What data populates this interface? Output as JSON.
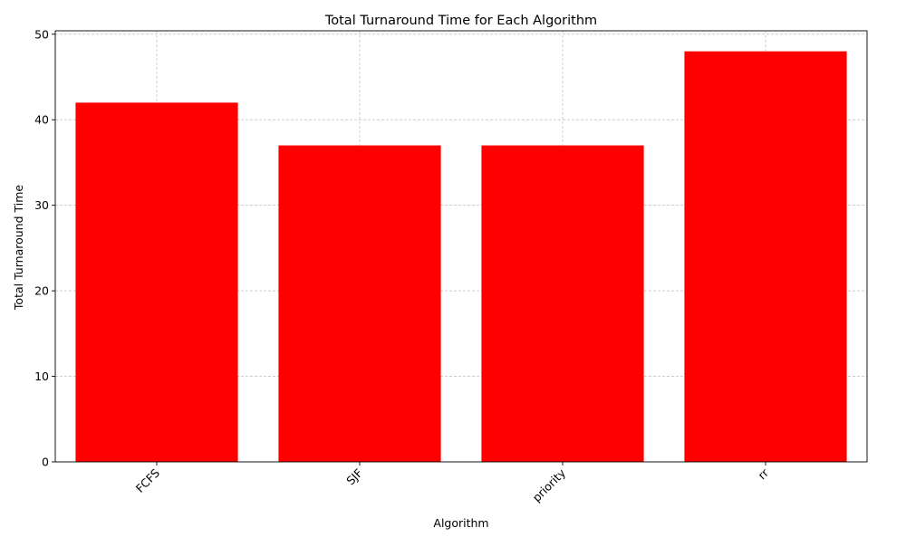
{
  "chart_data": {
    "type": "bar",
    "title": "Total Turnaround Time for Each Algorithm",
    "xlabel": "Algorithm",
    "ylabel": "Total Turnaround Time",
    "categories": [
      "FCFS",
      "SJF",
      "priority",
      "rr"
    ],
    "values": [
      42,
      37,
      37,
      48
    ],
    "ylim": [
      0,
      50.4
    ],
    "yticks": [
      0,
      10,
      20,
      30,
      40,
      50
    ],
    "grid": true,
    "legend": "none",
    "bar_color": "#ff0000",
    "grid_color": "#b0b0b0"
  }
}
